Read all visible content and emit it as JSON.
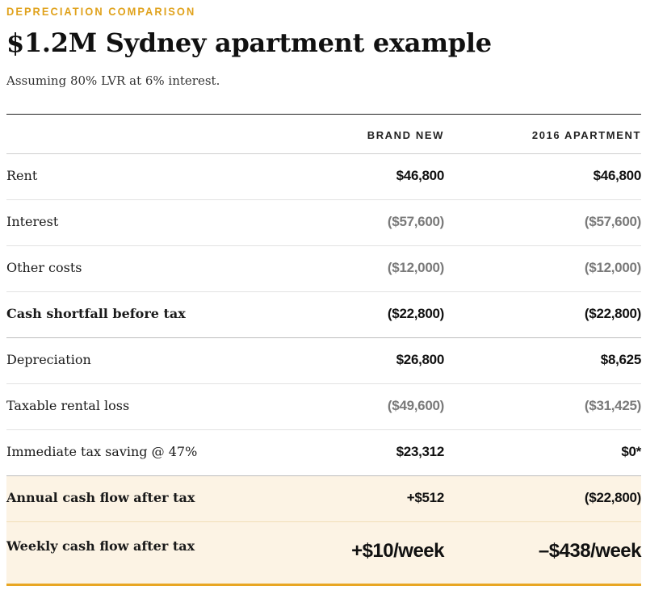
{
  "eyebrow": "DEPRECIATION COMPARISON",
  "title": "$1.2M Sydney apartment example",
  "subtitle": "Assuming 80% LVR at 6% interest.",
  "accent_color": "#e8a623",
  "highlight_color": "#fcf3e4",
  "table": {
    "columns": [
      "BRAND NEW",
      "2016 APARTMENT"
    ],
    "rows": [
      {
        "label": "Rent",
        "brand_new": "$46,800",
        "apartment_2016": "$46,800"
      },
      {
        "label": "Interest",
        "brand_new": "($57,600)",
        "apartment_2016": "($57,600)"
      },
      {
        "label": "Other costs",
        "brand_new": "($12,000)",
        "apartment_2016": "($12,000)"
      },
      {
        "label": "Cash shortfall before tax",
        "brand_new": "($22,800)",
        "apartment_2016": "($22,800)"
      },
      {
        "label": "Depreciation",
        "brand_new": "$26,800",
        "apartment_2016": "$8,625"
      },
      {
        "label": "Taxable rental loss",
        "brand_new": "($49,600)",
        "apartment_2016": "($31,425)"
      },
      {
        "label": "Immediate tax saving @ 47%",
        "brand_new": "$23,312",
        "apartment_2016": "$0*"
      },
      {
        "label": "Annual cash flow after tax",
        "brand_new": "+$512",
        "apartment_2016": "($22,800)"
      },
      {
        "label": "Weekly cash flow after tax",
        "brand_new": "+$10/week",
        "apartment_2016": "–$438/week"
      }
    ]
  }
}
